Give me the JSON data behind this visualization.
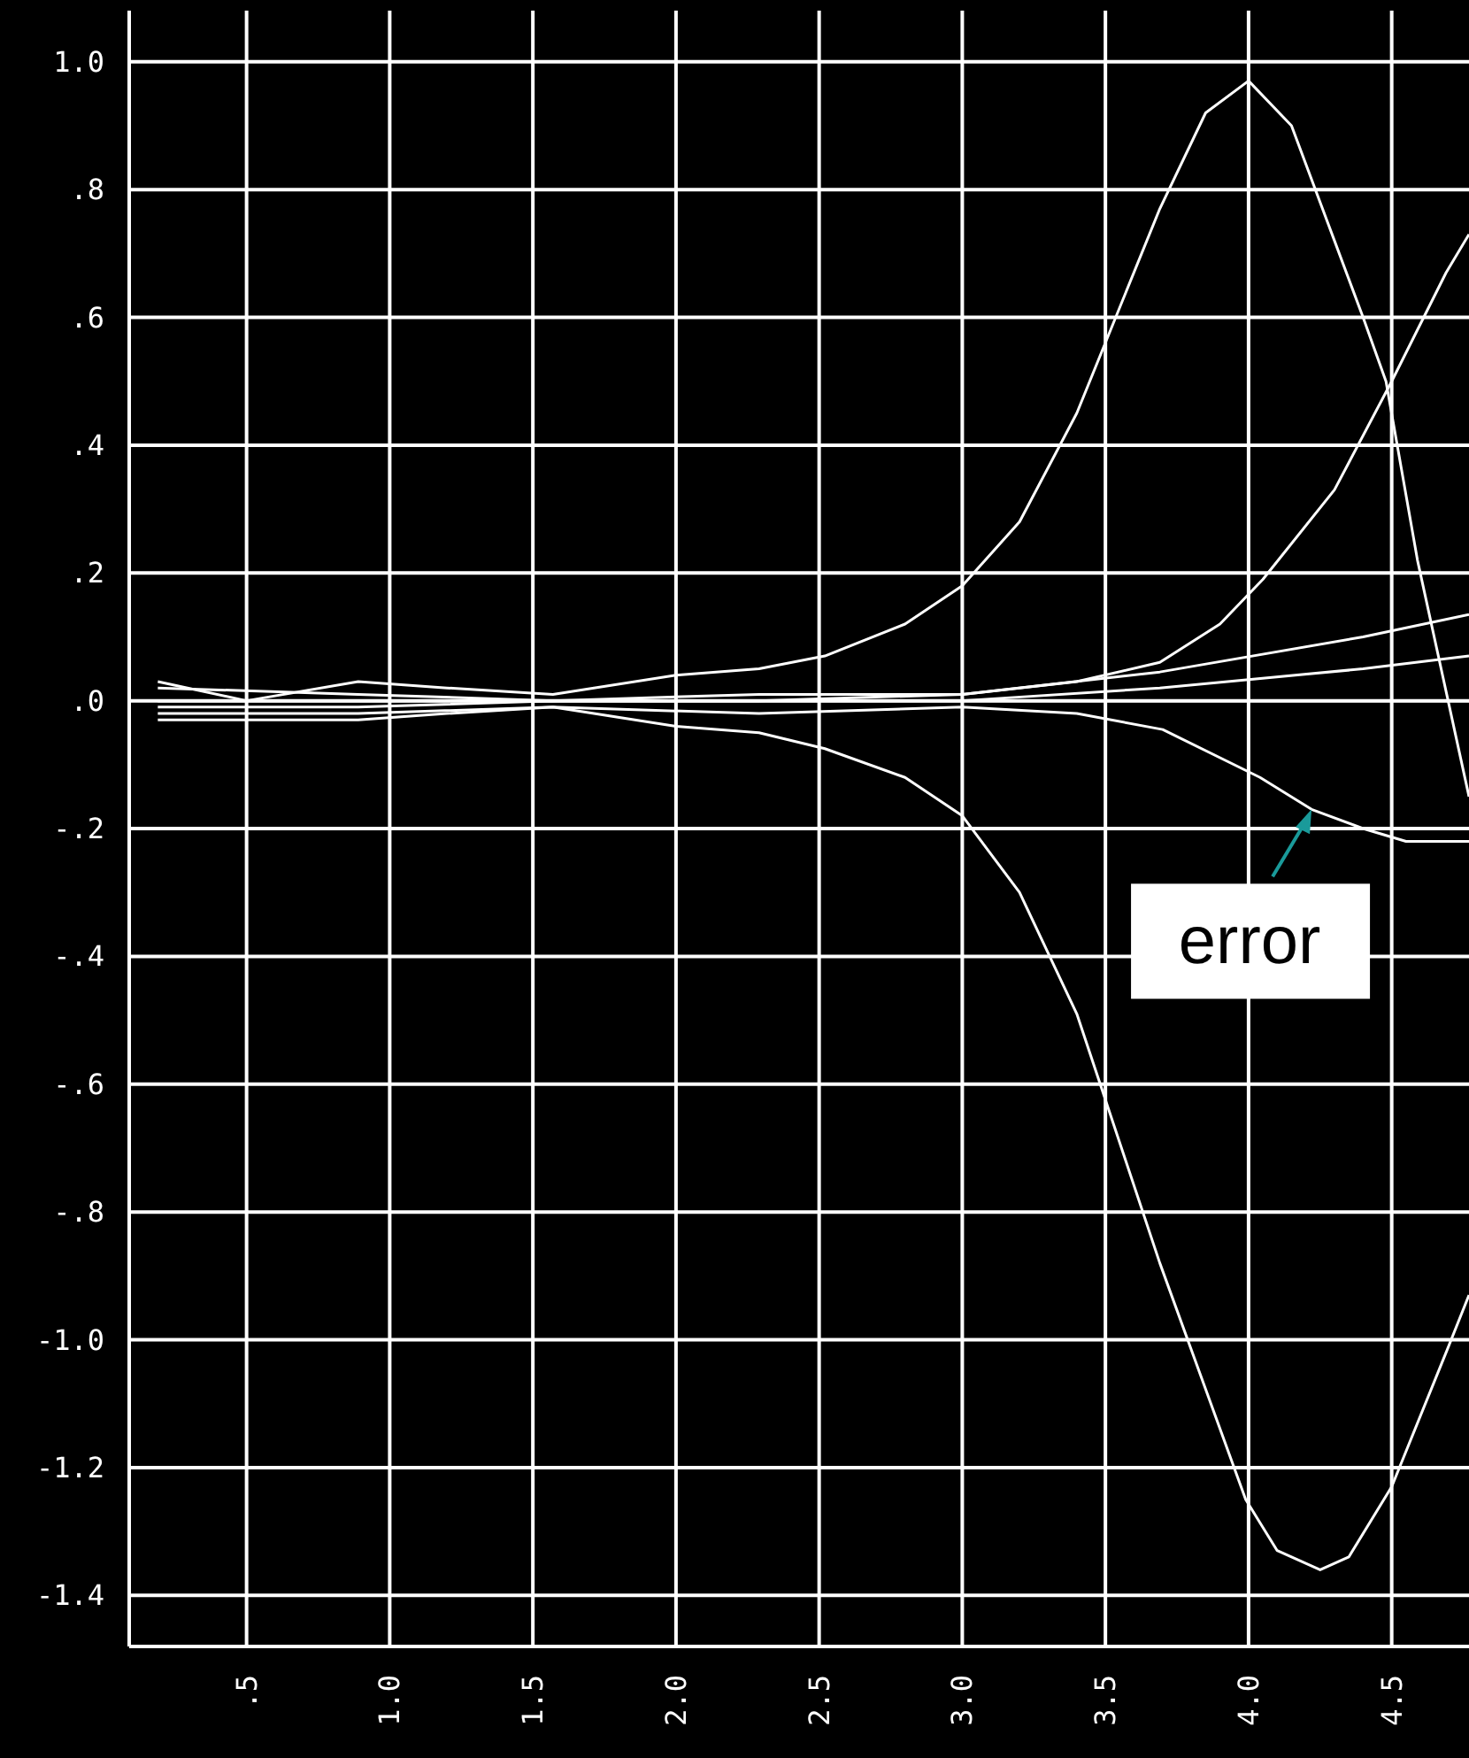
{
  "chart_data": {
    "type": "line",
    "xlim": [
      0.09,
      4.77
    ],
    "ylim": [
      -1.48,
      1.08
    ],
    "xticks": [
      {
        "value": 0.5,
        "label": ".5"
      },
      {
        "value": 1.0,
        "label": "1.0"
      },
      {
        "value": 1.5,
        "label": "1.5"
      },
      {
        "value": 2.0,
        "label": "2.0"
      },
      {
        "value": 2.5,
        "label": "2.5"
      },
      {
        "value": 3.0,
        "label": "3.0"
      },
      {
        "value": 3.5,
        "label": "3.5"
      },
      {
        "value": 4.0,
        "label": "4.0"
      },
      {
        "value": 4.5,
        "label": "4.5"
      }
    ],
    "yticks": [
      {
        "value": 1.0,
        "label": "1.0"
      },
      {
        "value": 0.8,
        "label": ".8"
      },
      {
        "value": 0.6,
        "label": ".6"
      },
      {
        "value": 0.4,
        "label": ".4"
      },
      {
        "value": 0.2,
        "label": ".2"
      },
      {
        "value": 0,
        "label": ".0"
      },
      {
        "value": -0.2,
        "label": "-.2"
      },
      {
        "value": -0.4,
        "label": "-.4"
      },
      {
        "value": -0.6,
        "label": "-.6"
      },
      {
        "value": -0.8,
        "label": "-.8"
      },
      {
        "value": -1.0,
        "label": "-1.0"
      },
      {
        "value": -1.2,
        "label": "-1.2"
      },
      {
        "value": -1.4,
        "label": "-1.4"
      }
    ],
    "grid": true,
    "line_style": "solid",
    "series": [
      {
        "color": "#ffffff",
        "x": [
          0.19,
          0.5,
          0.89,
          1.2,
          1.57,
          2.0,
          2.29,
          2.52,
          2.8,
          3.0,
          3.2,
          3.4,
          3.69,
          3.85,
          4.0,
          4.15,
          4.3,
          4.4,
          4.48,
          4.59,
          4.77
        ],
        "values": [
          0.03,
          0.0,
          0.03,
          0.02,
          0.01,
          0.04,
          0.05,
          0.07,
          0.12,
          0.18,
          0.28,
          0.45,
          0.77,
          0.92,
          0.97,
          0.9,
          0.72,
          0.6,
          0.5,
          0.22,
          -0.15
        ]
      },
      {
        "color": "#ffffff",
        "x": [
          0.19,
          0.5,
          0.89,
          1.2,
          1.57,
          2.0,
          2.29,
          2.52,
          2.8,
          3.0,
          3.2,
          3.4,
          3.69,
          3.99,
          4.1,
          4.25,
          4.35,
          4.5,
          4.69,
          4.77
        ],
        "values": [
          -0.03,
          -0.03,
          -0.03,
          -0.02,
          -0.01,
          -0.04,
          -0.05,
          -0.075,
          -0.12,
          -0.18,
          -0.3,
          -0.49,
          -0.88,
          -1.25,
          -1.33,
          -1.36,
          -1.34,
          -1.23,
          -1.02,
          -0.93
        ]
      },
      {
        "color": "#ffffff",
        "x": [
          0.19,
          0.89,
          1.57,
          2.29,
          3.0,
          3.4,
          3.69,
          3.9,
          4.05,
          4.3,
          4.5,
          4.69,
          4.77
        ],
        "values": [
          0.02,
          0.01,
          0,
          0.01,
          0.01,
          0.03,
          0.06,
          0.12,
          0.19,
          0.33,
          0.5,
          0.67,
          0.73
        ]
      },
      {
        "color": "#ffffff",
        "x": [
          0.19,
          0.89,
          1.57,
          2.29,
          3.0,
          3.69,
          4.4,
          4.77
        ],
        "values": [
          0,
          0,
          0,
          0,
          0.01,
          0.045,
          0.1,
          0.135
        ]
      },
      {
        "color": "#ffffff",
        "x": [
          0.19,
          0.89,
          1.57,
          2.29,
          3.0,
          3.69,
          4.4,
          4.77
        ],
        "values": [
          -0.01,
          -0.01,
          0,
          0,
          0,
          0.02,
          0.05,
          0.07
        ]
      },
      {
        "color": "#ffffff",
        "x": [
          0.19,
          0.89,
          1.57,
          2.29,
          3.0,
          3.4,
          3.7,
          4.04,
          4.22,
          4.4,
          4.55,
          4.77
        ],
        "values": [
          -0.02,
          -0.02,
          -0.01,
          -0.02,
          -0.01,
          -0.02,
          -0.045,
          -0.12,
          -0.17,
          -0.2,
          -0.22,
          -0.22
        ]
      },
      {
        "color": "#ffffff",
        "x": [
          0.19,
          4.77
        ],
        "values": [
          0,
          0
        ]
      }
    ],
    "annotations": [
      {
        "text": "error",
        "x": 4.22,
        "y": -0.17
      }
    ]
  }
}
